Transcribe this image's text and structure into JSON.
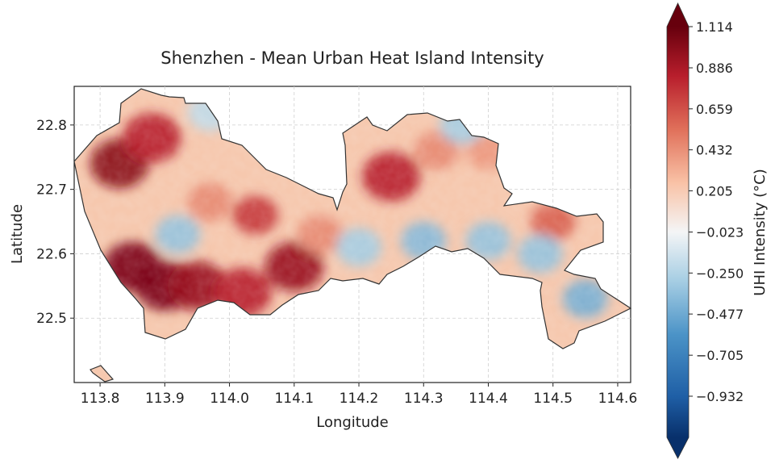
{
  "chart_data": {
    "type": "heatmap",
    "title": "Shenzhen - Mean Urban Heat Island Intensity",
    "xlabel": "Longitude",
    "ylabel": "Latitude",
    "x_ticks": [
      "113.8",
      "113.9",
      "114.0",
      "114.1",
      "114.2",
      "114.3",
      "114.4",
      "114.5",
      "114.6"
    ],
    "x_tick_values": [
      113.8,
      113.9,
      114.0,
      114.1,
      114.2,
      114.3,
      114.4,
      114.5,
      114.6
    ],
    "y_ticks": [
      "22.8",
      "22.7",
      "22.6",
      "22.5"
    ],
    "y_tick_values": [
      22.8,
      22.7,
      22.6,
      22.5
    ],
    "xlim": [
      113.76,
      114.62
    ],
    "ylim": [
      22.4,
      22.86
    ],
    "grid": true,
    "colormap": "RdBu_r",
    "colorbar": {
      "label": "UHI Intensity (°C)",
      "ticks": [
        "1.114",
        "0.886",
        "0.659",
        "0.432",
        "0.205",
        "−0.023",
        "−0.250",
        "−0.477",
        "−0.705",
        "−0.932"
      ],
      "tick_values": [
        1.114,
        0.886,
        0.659,
        0.432,
        0.205,
        -0.023,
        -0.25,
        -0.477,
        -0.705,
        -0.932
      ],
      "range": [
        -1.16,
        1.114
      ],
      "extend": "both"
    },
    "hot_spots": [
      {
        "lon": 113.83,
        "lat": 22.74,
        "value": 1.0
      },
      {
        "lon": 113.88,
        "lat": 22.78,
        "value": 0.85
      },
      {
        "lon": 113.85,
        "lat": 22.58,
        "value": 1.05
      },
      {
        "lon": 113.9,
        "lat": 22.55,
        "value": 1.05
      },
      {
        "lon": 113.95,
        "lat": 22.55,
        "value": 0.95
      },
      {
        "lon": 114.02,
        "lat": 22.54,
        "value": 0.85
      },
      {
        "lon": 114.1,
        "lat": 22.58,
        "value": 0.95
      },
      {
        "lon": 114.04,
        "lat": 22.66,
        "value": 0.75
      },
      {
        "lon": 113.97,
        "lat": 22.68,
        "value": 0.45
      },
      {
        "lon": 114.25,
        "lat": 22.72,
        "value": 0.85
      },
      {
        "lon": 114.32,
        "lat": 22.76,
        "value": 0.45
      },
      {
        "lon": 114.4,
        "lat": 22.76,
        "value": 0.4
      },
      {
        "lon": 114.5,
        "lat": 22.65,
        "value": 0.6
      },
      {
        "lon": 114.14,
        "lat": 22.63,
        "value": 0.45
      }
    ],
    "cool_spots": [
      {
        "lon": 113.92,
        "lat": 22.63,
        "value": -0.35
      },
      {
        "lon": 114.3,
        "lat": 22.62,
        "value": -0.4
      },
      {
        "lon": 114.4,
        "lat": 22.62,
        "value": -0.35
      },
      {
        "lon": 114.55,
        "lat": 22.53,
        "value": -0.45
      },
      {
        "lon": 114.36,
        "lat": 22.8,
        "value": -0.3
      },
      {
        "lon": 114.2,
        "lat": 22.61,
        "value": -0.3
      },
      {
        "lon": 113.97,
        "lat": 22.82,
        "value": -0.2
      },
      {
        "lon": 114.48,
        "lat": 22.6,
        "value": -0.35
      }
    ]
  }
}
